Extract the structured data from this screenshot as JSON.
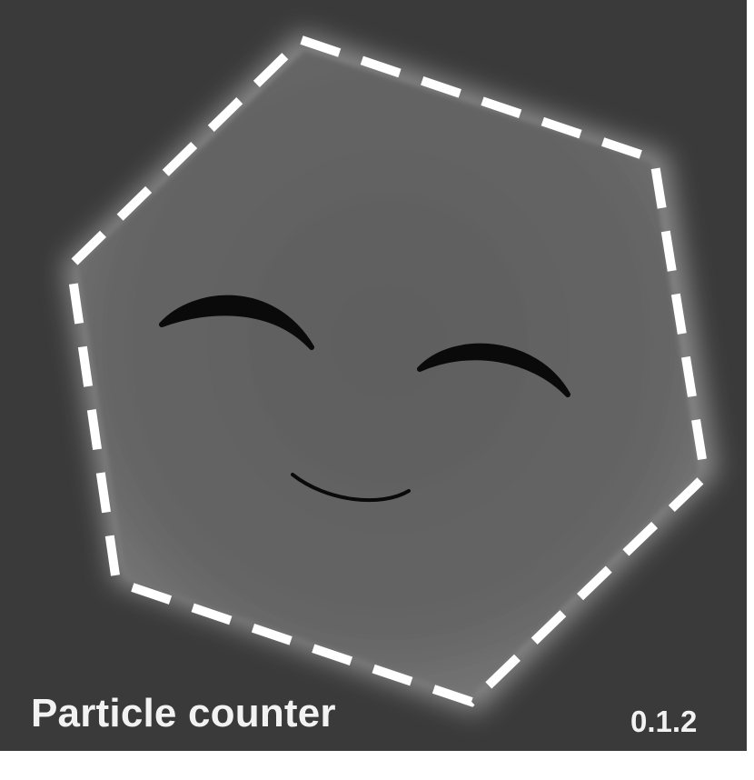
{
  "app": {
    "title": "Particle counter",
    "version": "0.1.2"
  },
  "colors": {
    "background": "#3a3a3a",
    "particle": "#6a6a6a",
    "particle_rim": "#9a9a9a",
    "outline": "#ffffff",
    "features": "#0a0a0a",
    "caption_text": "#f2f2f2"
  },
  "icons": {
    "particle": "hexagon-particle-icon",
    "outline": "dashed-hexagon-outline",
    "left_eye": "closed-eye-arc",
    "right_eye": "closed-eye-arc",
    "mouth": "smile-arc"
  }
}
